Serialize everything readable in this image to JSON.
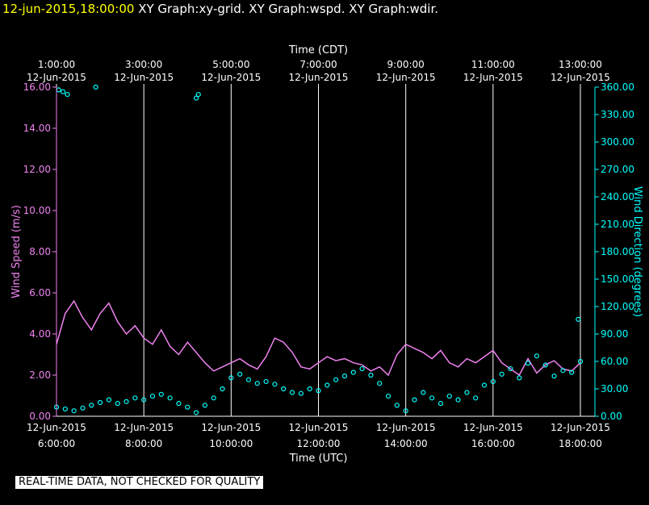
{
  "header": {
    "timestamp": "12-jun-2015,18:00:00",
    "graphs": [
      "XY Graph:xy-grid.",
      "XY Graph:wspd.",
      "XY Graph:wdir."
    ]
  },
  "notice": "REAL-TIME DATA, NOT CHECKED FOR QUALITY",
  "colors": {
    "wind_speed": "#ee82ee",
    "wind_direction": "#00ffff",
    "grid": "#ffffff",
    "axis_text": "#ffffff",
    "timestamp": "#ffff00"
  },
  "chart_data": {
    "type": "line",
    "top_axis": {
      "title": "Time (CDT)",
      "ticks": [
        {
          "time": "1:00:00",
          "date": "12-Jun-2015"
        },
        {
          "time": "3:00:00",
          "date": "12-Jun-2015"
        },
        {
          "time": "5:00:00",
          "date": "12-Jun-2015"
        },
        {
          "time": "7:00:00",
          "date": "12-Jun-2015"
        },
        {
          "time": "9:00:00",
          "date": "12-Jun-2015"
        },
        {
          "time": "11:00:00",
          "date": "12-Jun-2015"
        },
        {
          "time": "13:00:00",
          "date": "12-Jun-2015"
        }
      ]
    },
    "bottom_axis": {
      "title": "Time (UTC)",
      "range_hours_utc": [
        6,
        18
      ],
      "ticks": [
        {
          "date": "12-Jun-2015",
          "time": "6:00:00"
        },
        {
          "date": "12-Jun-2015",
          "time": "8:00:00"
        },
        {
          "date": "12-Jun-2015",
          "time": "10:00:00"
        },
        {
          "date": "12-Jun-2015",
          "time": "12:00:00"
        },
        {
          "date": "12-Jun-2015",
          "time": "14:00:00"
        },
        {
          "date": "12-Jun-2015",
          "time": "16:00:00"
        },
        {
          "date": "12-Jun-2015",
          "time": "18:00:00"
        }
      ]
    },
    "left_axis": {
      "title": "Wind Speed (m/s)",
      "range": [
        0,
        16
      ],
      "ticks": [
        "0.00",
        "2.00",
        "4.00",
        "6.00",
        "8.00",
        "10.00",
        "12.00",
        "14.00",
        "16.00"
      ]
    },
    "right_axis": {
      "title": "Wind Direction (degrees)",
      "range": [
        0,
        360
      ],
      "ticks": [
        "0.00",
        "30.00",
        "60.00",
        "90.00",
        "120.00",
        "150.00",
        "180.00",
        "210.00",
        "240.00",
        "270.00",
        "300.00",
        "330.00",
        "360.00"
      ]
    },
    "grid": "vertical lines at bottom-axis ticks",
    "series": [
      {
        "name": "Wind Speed",
        "axis": "left",
        "style": "line",
        "x_hours_utc": [
          6.0,
          6.2,
          6.4,
          6.6,
          6.8,
          7.0,
          7.2,
          7.4,
          7.6,
          7.8,
          8.0,
          8.2,
          8.4,
          8.6,
          8.8,
          9.0,
          9.2,
          9.4,
          9.6,
          9.8,
          10.0,
          10.2,
          10.4,
          10.6,
          10.8,
          11.0,
          11.2,
          11.4,
          11.6,
          11.8,
          12.0,
          12.2,
          12.4,
          12.6,
          12.8,
          13.0,
          13.2,
          13.4,
          13.6,
          13.8,
          14.0,
          14.2,
          14.4,
          14.6,
          14.8,
          15.0,
          15.2,
          15.4,
          15.6,
          15.8,
          16.0,
          16.2,
          16.4,
          16.6,
          16.8,
          17.0,
          17.2,
          17.4,
          17.6,
          17.8,
          18.0
        ],
        "values": [
          3.5,
          5.0,
          5.6,
          4.8,
          4.2,
          5.0,
          5.5,
          4.6,
          4.0,
          4.4,
          3.8,
          3.5,
          4.2,
          3.4,
          3.0,
          3.6,
          3.1,
          2.6,
          2.2,
          2.4,
          2.6,
          2.8,
          2.5,
          2.3,
          2.9,
          3.8,
          3.6,
          3.1,
          2.4,
          2.3,
          2.6,
          2.9,
          2.7,
          2.8,
          2.6,
          2.5,
          2.2,
          2.4,
          2.0,
          3.0,
          3.5,
          3.3,
          3.1,
          2.8,
          3.2,
          2.6,
          2.4,
          2.8,
          2.6,
          2.9,
          3.2,
          2.6,
          2.3,
          2.0,
          2.8,
          2.1,
          2.5,
          2.7,
          2.3,
          2.2,
          2.6
        ]
      },
      {
        "name": "Wind Direction",
        "axis": "right",
        "style": "markers",
        "x_hours_utc": [
          6.0,
          6.2,
          6.4,
          6.6,
          6.8,
          7.0,
          7.2,
          7.4,
          7.6,
          7.8,
          8.0,
          8.2,
          8.4,
          8.6,
          8.8,
          9.0,
          9.2,
          9.4,
          9.6,
          9.8,
          10.0,
          10.2,
          10.4,
          10.6,
          10.8,
          11.0,
          11.2,
          11.4,
          11.6,
          11.8,
          12.0,
          12.2,
          12.4,
          12.6,
          12.8,
          13.0,
          13.2,
          13.4,
          13.6,
          13.8,
          14.0,
          14.2,
          14.4,
          14.6,
          14.8,
          15.0,
          15.2,
          15.4,
          15.6,
          15.8,
          16.0,
          16.2,
          16.4,
          16.6,
          16.8,
          17.0,
          17.2,
          17.4,
          17.6,
          17.8,
          18.0
        ],
        "values": [
          10,
          8,
          6,
          9,
          12,
          15,
          18,
          14,
          16,
          20,
          18,
          22,
          24,
          20,
          14,
          10,
          4,
          12,
          20,
          30,
          42,
          46,
          40,
          36,
          38,
          35,
          30,
          26,
          25,
          30,
          28,
          34,
          40,
          44,
          48,
          52,
          45,
          36,
          22,
          12,
          6,
          18,
          26,
          20,
          14,
          22,
          18,
          26,
          20,
          34,
          38,
          46,
          52,
          42,
          58,
          66,
          56,
          44,
          50,
          48,
          60
        ],
        "outliers": [
          {
            "x_hours_utc": 6.05,
            "value": 357
          },
          {
            "x_hours_utc": 6.15,
            "value": 355
          },
          {
            "x_hours_utc": 6.25,
            "value": 352
          },
          {
            "x_hours_utc": 6.9,
            "value": 360
          },
          {
            "x_hours_utc": 9.2,
            "value": 348
          },
          {
            "x_hours_utc": 9.25,
            "value": 352
          },
          {
            "x_hours_utc": 17.95,
            "value": 106
          }
        ]
      }
    ]
  }
}
